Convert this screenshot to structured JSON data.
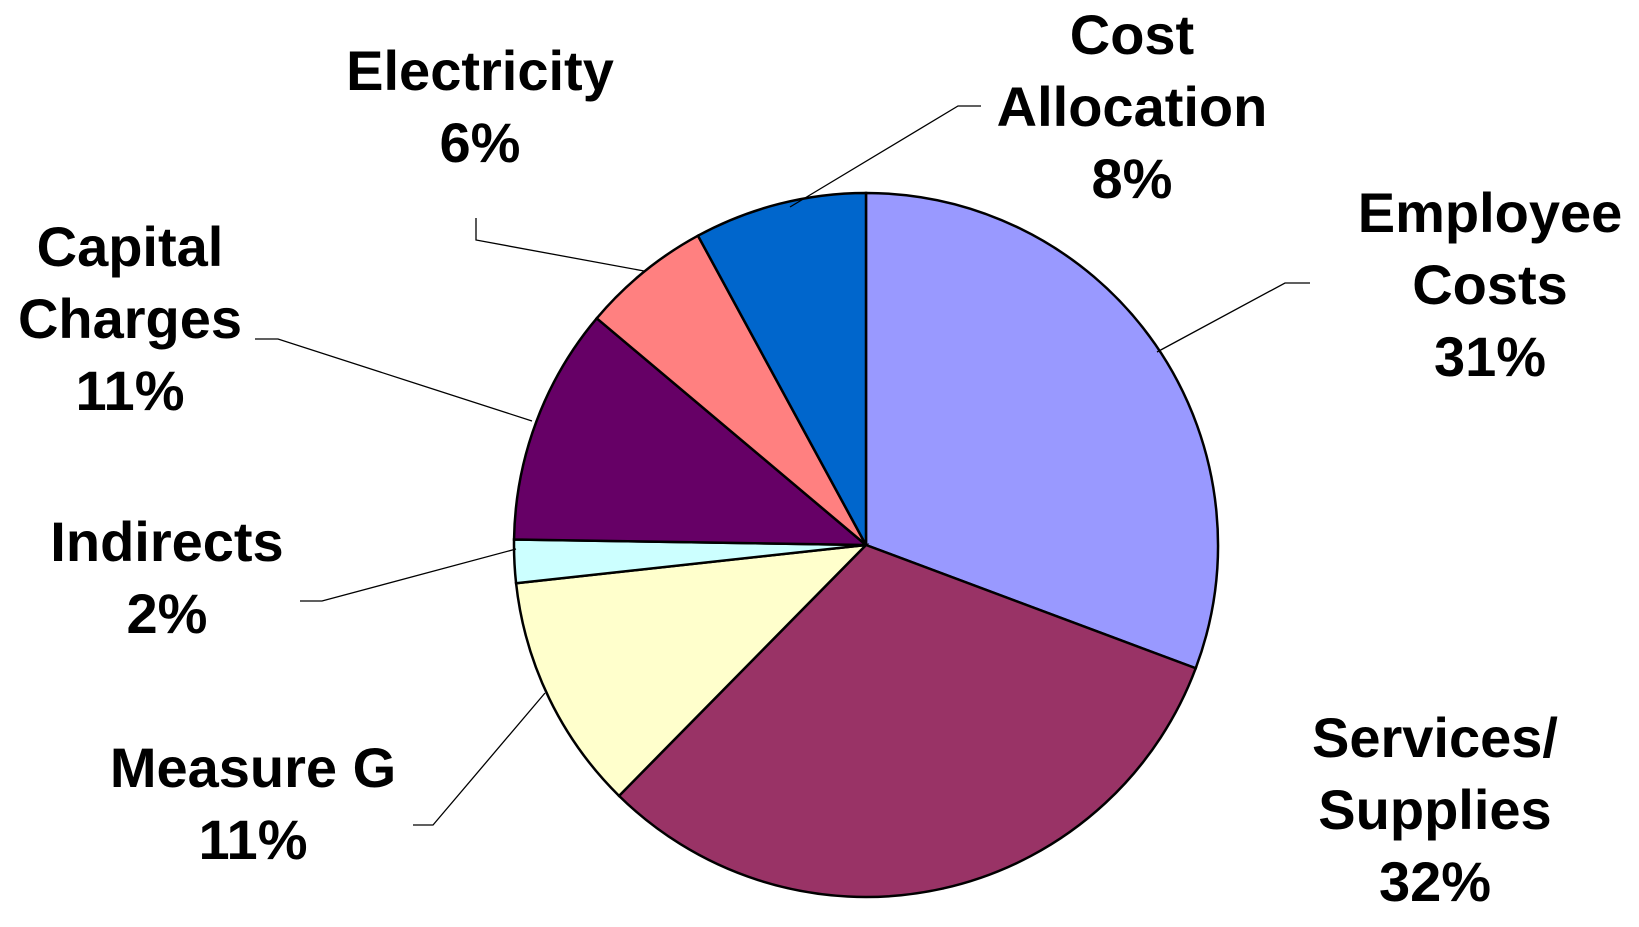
{
  "chart_data": {
    "type": "pie",
    "title": "",
    "start_angle_deg": 0,
    "direction": "clockwise",
    "legend": "none",
    "slices": [
      {
        "label_lines": [
          "Employee",
          "Costs"
        ],
        "percent_label": "31%",
        "value": 31,
        "color": "#9999FF"
      },
      {
        "label_lines": [
          "Services/",
          "Supplies"
        ],
        "percent_label": "32%",
        "value": 32,
        "color": "#993366"
      },
      {
        "label_lines": [
          "Measure G"
        ],
        "percent_label": "11%",
        "value": 11,
        "color": "#FFFFCC"
      },
      {
        "label_lines": [
          "Indirects"
        ],
        "percent_label": "2%",
        "value": 2,
        "color": "#CCFFFF"
      },
      {
        "label_lines": [
          "Capital",
          "Charges"
        ],
        "percent_label": "11%",
        "value": 11,
        "color": "#660066"
      },
      {
        "label_lines": [
          "Electricity"
        ],
        "percent_label": "6%",
        "value": 6,
        "color": "#FF8080"
      },
      {
        "label_lines": [
          "Cost",
          "Allocation"
        ],
        "percent_label": "8%",
        "value": 8,
        "color": "#0066CC"
      }
    ]
  }
}
